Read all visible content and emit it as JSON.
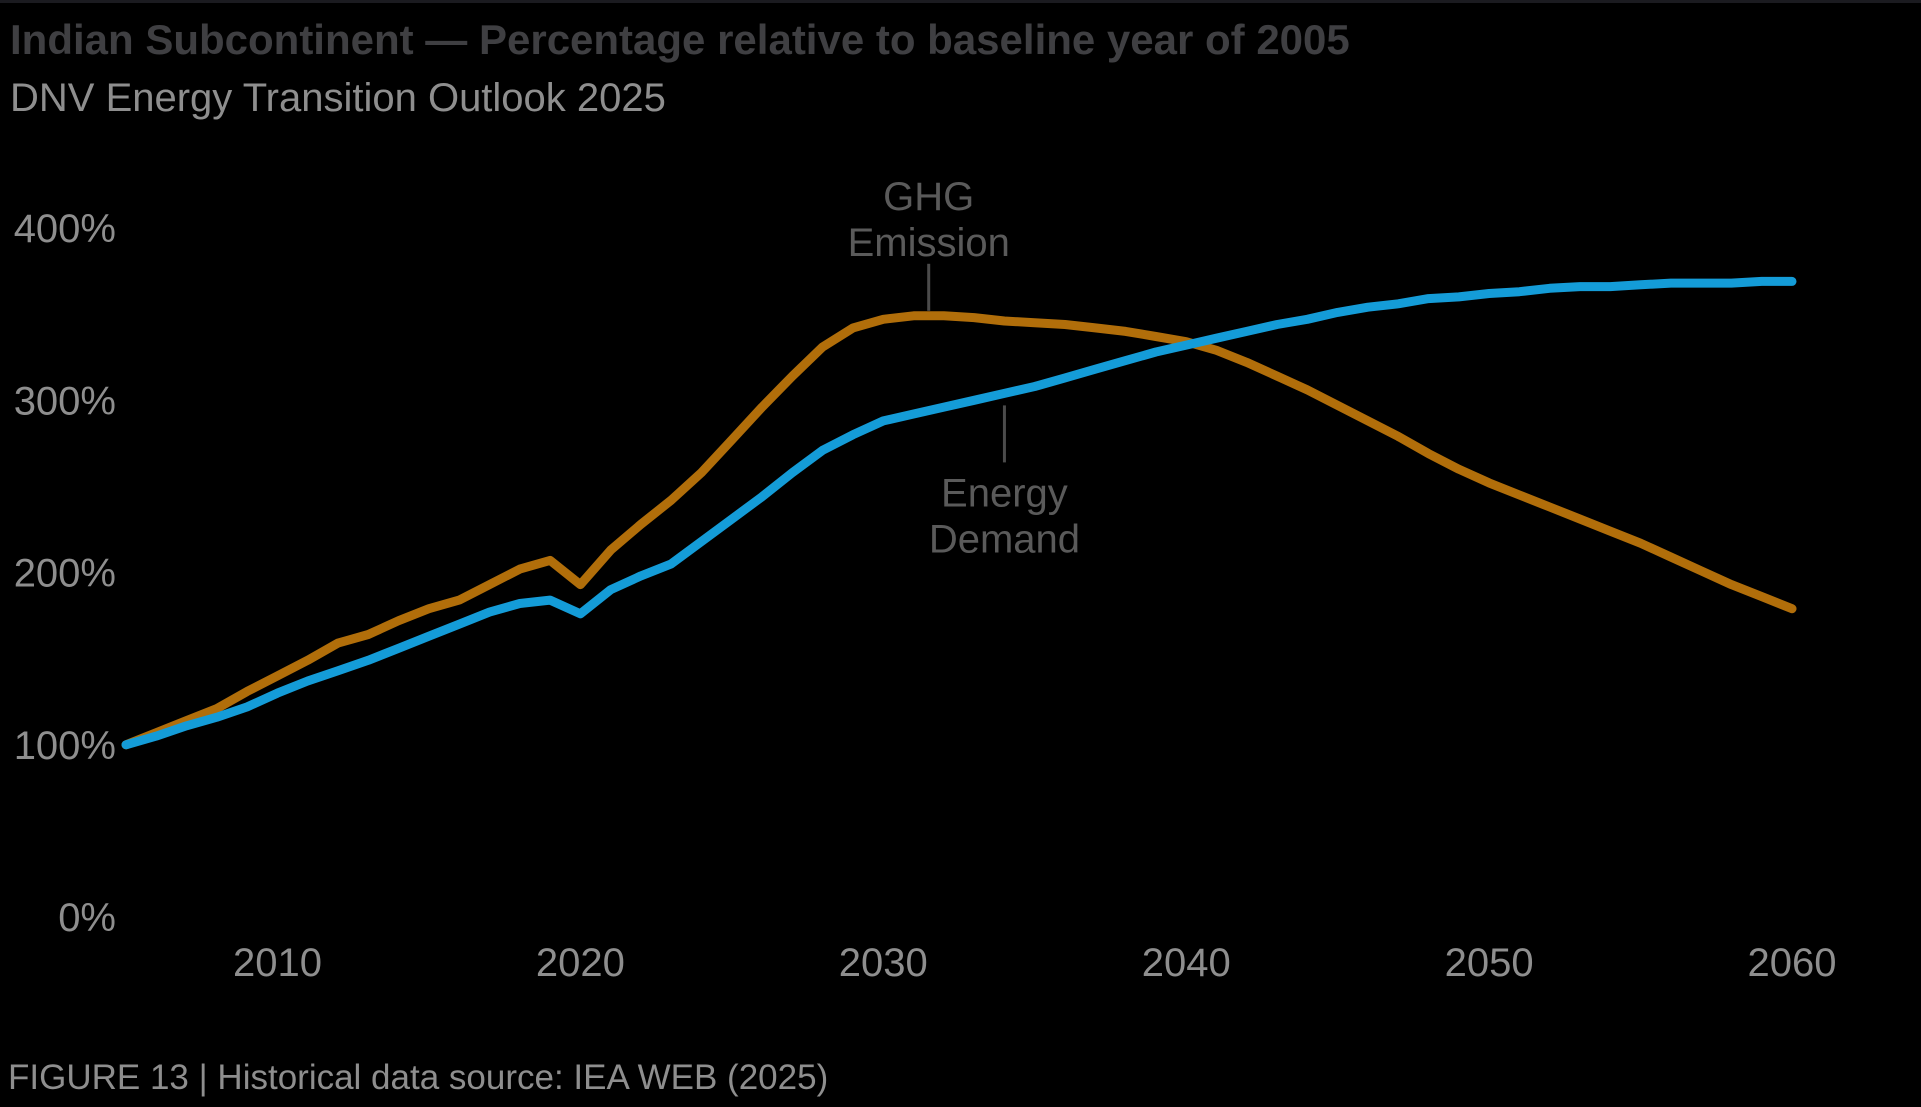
{
  "header": {
    "title": "Indian Subcontinent — Percentage relative to baseline year of 2005",
    "subtitle": "DNV Energy Transition Outlook 2025"
  },
  "footer": {
    "caption": "FIGURE 13 | Historical data source: IEA WEB (2025)"
  },
  "colors": {
    "background": "#000000",
    "top_rule": "#1b1b20",
    "title_text": "#3f3f42",
    "subtitle_text": "#8e8e8e",
    "tick_label": "#8e8e8e",
    "annotation_text": "#5a5a5a",
    "leader_line": "#4b4b4b",
    "ghg_line": "#B16E0A",
    "energy_line": "#149CD8",
    "footer_text": "#8e8e8e"
  },
  "chart_data": {
    "type": "line",
    "title": "Indian Subcontinent — Percentage relative to baseline year of 2005",
    "subtitle": "DNV Energy Transition Outlook 2025",
    "xlabel": "",
    "ylabel": "",
    "grid": false,
    "legend_position": "inline-annotations",
    "xlim": [
      2005,
      2060
    ],
    "ylim": [
      0,
      430
    ],
    "x_ticks": [
      2010,
      2020,
      2030,
      2040,
      2050,
      2060
    ],
    "y_ticks": [
      {
        "value": 0,
        "label": "0%"
      },
      {
        "value": 100,
        "label": "100%"
      },
      {
        "value": 200,
        "label": "200%"
      },
      {
        "value": 300,
        "label": "300%"
      },
      {
        "value": 400,
        "label": "400%"
      }
    ],
    "x": [
      2005,
      2006,
      2007,
      2008,
      2009,
      2010,
      2011,
      2012,
      2013,
      2014,
      2015,
      2016,
      2017,
      2018,
      2019,
      2020,
      2021,
      2022,
      2023,
      2024,
      2025,
      2026,
      2027,
      2028,
      2029,
      2030,
      2031,
      2032,
      2033,
      2034,
      2035,
      2036,
      2037,
      2038,
      2039,
      2040,
      2041,
      2042,
      2043,
      2044,
      2045,
      2046,
      2047,
      2048,
      2049,
      2050,
      2051,
      2052,
      2053,
      2054,
      2055,
      2056,
      2057,
      2058,
      2059,
      2060
    ],
    "series": [
      {
        "name": "GHG Emission",
        "color": "#B16E0A",
        "values": [
          100,
          107,
          114,
          121,
          131,
          140,
          149,
          159,
          164,
          172,
          179,
          184,
          193,
          202,
          207,
          193,
          213,
          228,
          242,
          258,
          277,
          296,
          314,
          331,
          342,
          347,
          349,
          349,
          348,
          346,
          345,
          344,
          342,
          340,
          337,
          334,
          329,
          322,
          314,
          306,
          297,
          288,
          279,
          269,
          260,
          252,
          245,
          238,
          231,
          224,
          217,
          209,
          201,
          193,
          186,
          179
        ]
      },
      {
        "name": "Energy Demand",
        "color": "#149CD8",
        "values": [
          100,
          105,
          111,
          116,
          122,
          130,
          137,
          143,
          149,
          156,
          163,
          170,
          177,
          182,
          184,
          176,
          190,
          198,
          205,
          218,
          231,
          244,
          258,
          271,
          280,
          288,
          292,
          296,
          300,
          304,
          308,
          313,
          318,
          323,
          328,
          332,
          336,
          340,
          344,
          347,
          351,
          354,
          356,
          359,
          360,
          362,
          363,
          365,
          366,
          366,
          367,
          368,
          368,
          368,
          369,
          369
        ]
      }
    ],
    "annotations": [
      {
        "lines": [
          "GHG",
          "Emission"
        ],
        "series": "GHG Emission",
        "year": 2031.5,
        "side": "above"
      },
      {
        "lines": [
          "Energy",
          "Demand"
        ],
        "series": "Energy Demand",
        "year": 2034,
        "side": "below"
      }
    ]
  }
}
